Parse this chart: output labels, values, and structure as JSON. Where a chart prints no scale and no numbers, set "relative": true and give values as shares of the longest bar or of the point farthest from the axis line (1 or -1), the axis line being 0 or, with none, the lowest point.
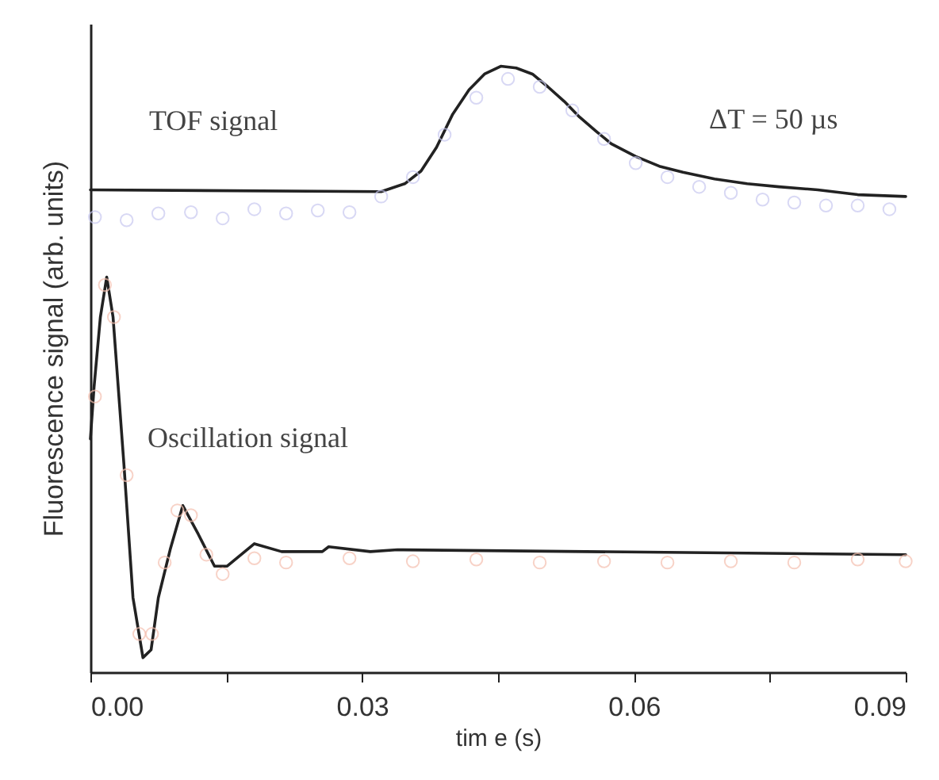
{
  "chart_data": {
    "type": "line",
    "xlabel": "tim e (s)",
    "ylabel": "Fluorescence signal (arb. units)",
    "relative": true,
    "tick_labels": "x",
    "xlim": [
      0,
      0.09
    ],
    "xticks": [
      {
        "value": 0,
        "label": "0.00"
      },
      {
        "value": 0.015,
        "label": null
      },
      {
        "value": 0.03,
        "label": "0.03"
      },
      {
        "value": 0.045,
        "label": null
      },
      {
        "value": 0.06,
        "label": "0.06"
      },
      {
        "value": 0.075,
        "label": null
      },
      {
        "value": 0.09,
        "label": "0.09"
      }
    ],
    "annotations": [
      "ΔT = 50 µs"
    ],
    "series": [
      {
        "name": "TOF signal",
        "color": "#222222",
        "marker": "none",
        "x": [
          0,
          0.0321,
          0.0347,
          0.0365,
          0.0382,
          0.04,
          0.0418,
          0.0435,
          0.0453,
          0.047,
          0.0488,
          0.0505,
          0.0523,
          0.054,
          0.0558,
          0.0575,
          0.0602,
          0.0628,
          0.0654,
          0.0689,
          0.0725,
          0.076,
          0.0803,
          0.0847,
          0.09
        ],
        "values": [
          0.796,
          0.793,
          0.806,
          0.827,
          0.866,
          0.921,
          0.961,
          0.987,
          1.0,
          0.997,
          0.987,
          0.966,
          0.942,
          0.916,
          0.893,
          0.872,
          0.851,
          0.835,
          0.825,
          0.814,
          0.806,
          0.801,
          0.796,
          0.788,
          0.785
        ]
      },
      {
        "type": "scatter",
        "color": "#c8c8f0",
        "marker": "circle",
        "x": [
          0.0005,
          0.004,
          0.0075,
          0.0111,
          0.0146,
          0.0181,
          0.0216,
          0.0251,
          0.0286,
          0.0321,
          0.0356,
          0.0391,
          0.0426,
          0.0461,
          0.0496,
          0.0532,
          0.0567,
          0.0602,
          0.0637,
          0.0672,
          0.0707,
          0.0742,
          0.0777,
          0.0812,
          0.0847,
          0.0882
        ],
        "values": [
          0.751,
          0.746,
          0.757,
          0.759,
          0.749,
          0.764,
          0.757,
          0.762,
          0.759,
          0.785,
          0.817,
          0.887,
          0.948,
          0.979,
          0.966,
          0.927,
          0.88,
          0.84,
          0.817,
          0.801,
          0.791,
          0.78,
          0.775,
          0.77,
          0.77,
          0.764
        ]
      },
      {
        "name": "Oscillation signal",
        "color": "#222222",
        "marker": "none",
        "x": [
          0,
          0.0004,
          0.0011,
          0.0018,
          0.0025,
          0.0037,
          0.0047,
          0.0058,
          0.0067,
          0.0075,
          0.0088,
          0.0102,
          0.0119,
          0.0137,
          0.0151,
          0.0181,
          0.0211,
          0.0256,
          0.0263,
          0.0309,
          0.0339,
          0.09
        ],
        "values": [
          0.385,
          0.47,
          0.586,
          0.652,
          0.586,
          0.343,
          0.123,
          0.024,
          0.037,
          0.123,
          0.202,
          0.275,
          0.228,
          0.175,
          0.175,
          0.212,
          0.199,
          0.199,
          0.207,
          0.199,
          0.202,
          0.194
        ]
      },
      {
        "type": "scatter",
        "color": "#f5c0b0",
        "marker": "circle",
        "x": [
          0.0005,
          0.0016,
          0.0026,
          0.004,
          0.0054,
          0.0068,
          0.0082,
          0.0096,
          0.0111,
          0.0128,
          0.0146,
          0.0181,
          0.0216,
          0.0286,
          0.0356,
          0.0426,
          0.0496,
          0.0567,
          0.0637,
          0.0707,
          0.0777,
          0.0847,
          0.09
        ],
        "values": [
          0.455,
          0.639,
          0.586,
          0.325,
          0.063,
          0.063,
          0.181,
          0.267,
          0.259,
          0.194,
          0.162,
          0.188,
          0.181,
          0.188,
          0.183,
          0.186,
          0.181,
          0.183,
          0.181,
          0.183,
          0.181,
          0.186,
          0.183
        ]
      }
    ]
  }
}
